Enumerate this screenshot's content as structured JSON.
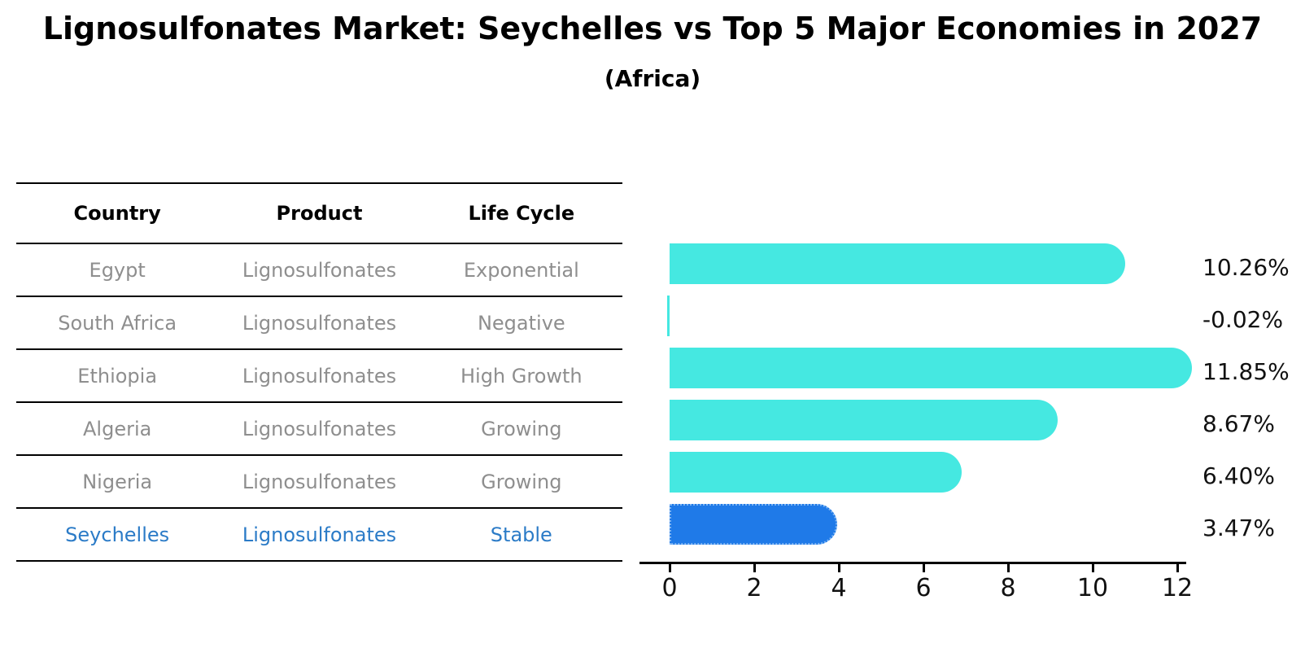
{
  "title": "Lignosulfonates Market: Seychelles vs Top 5 Major Economies in 2027",
  "subtitle": "(Africa)",
  "table": {
    "headers": [
      "Country",
      "Product",
      "Life Cycle"
    ],
    "rows": [
      {
        "country": "Egypt",
        "product": "Lignosulfonates",
        "life_cycle": "Exponential"
      },
      {
        "country": "South Africa",
        "product": "Lignosulfonates",
        "life_cycle": "Negative"
      },
      {
        "country": "Ethiopia",
        "product": "Lignosulfonates",
        "life_cycle": "High Growth"
      },
      {
        "country": "Algeria",
        "product": "Lignosulfonates",
        "life_cycle": "Growing"
      },
      {
        "country": "Nigeria",
        "product": "Lignosulfonates",
        "life_cycle": "Growing"
      },
      {
        "country": "Seychelles",
        "product": "Lignosulfonates",
        "life_cycle": "Stable"
      }
    ]
  },
  "chart_data": {
    "type": "bar",
    "orientation": "horizontal",
    "categories": [
      "Egypt",
      "South Africa",
      "Ethiopia",
      "Algeria",
      "Nigeria",
      "Seychelles"
    ],
    "values": [
      10.26,
      -0.02,
      11.85,
      8.67,
      6.4,
      3.47
    ],
    "value_labels": [
      "10.26%",
      "-0.02%",
      "11.85%",
      "8.67%",
      "6.40%",
      "3.47%"
    ],
    "unit": "%",
    "x_ticks": [
      0,
      2,
      4,
      6,
      8,
      10,
      12
    ],
    "xlim": [
      -0.1,
      12.6
    ],
    "grid": false,
    "legend": "none",
    "highlight_index": 5,
    "bar_color": "#45E8E1",
    "highlight_color": "#1F7AE8",
    "highlight_border_color": "#7EB5F3"
  },
  "colors": {
    "table_text": "#8E8E8E",
    "highlight_row_text": "#2B7BC7",
    "axis": "#000000"
  }
}
